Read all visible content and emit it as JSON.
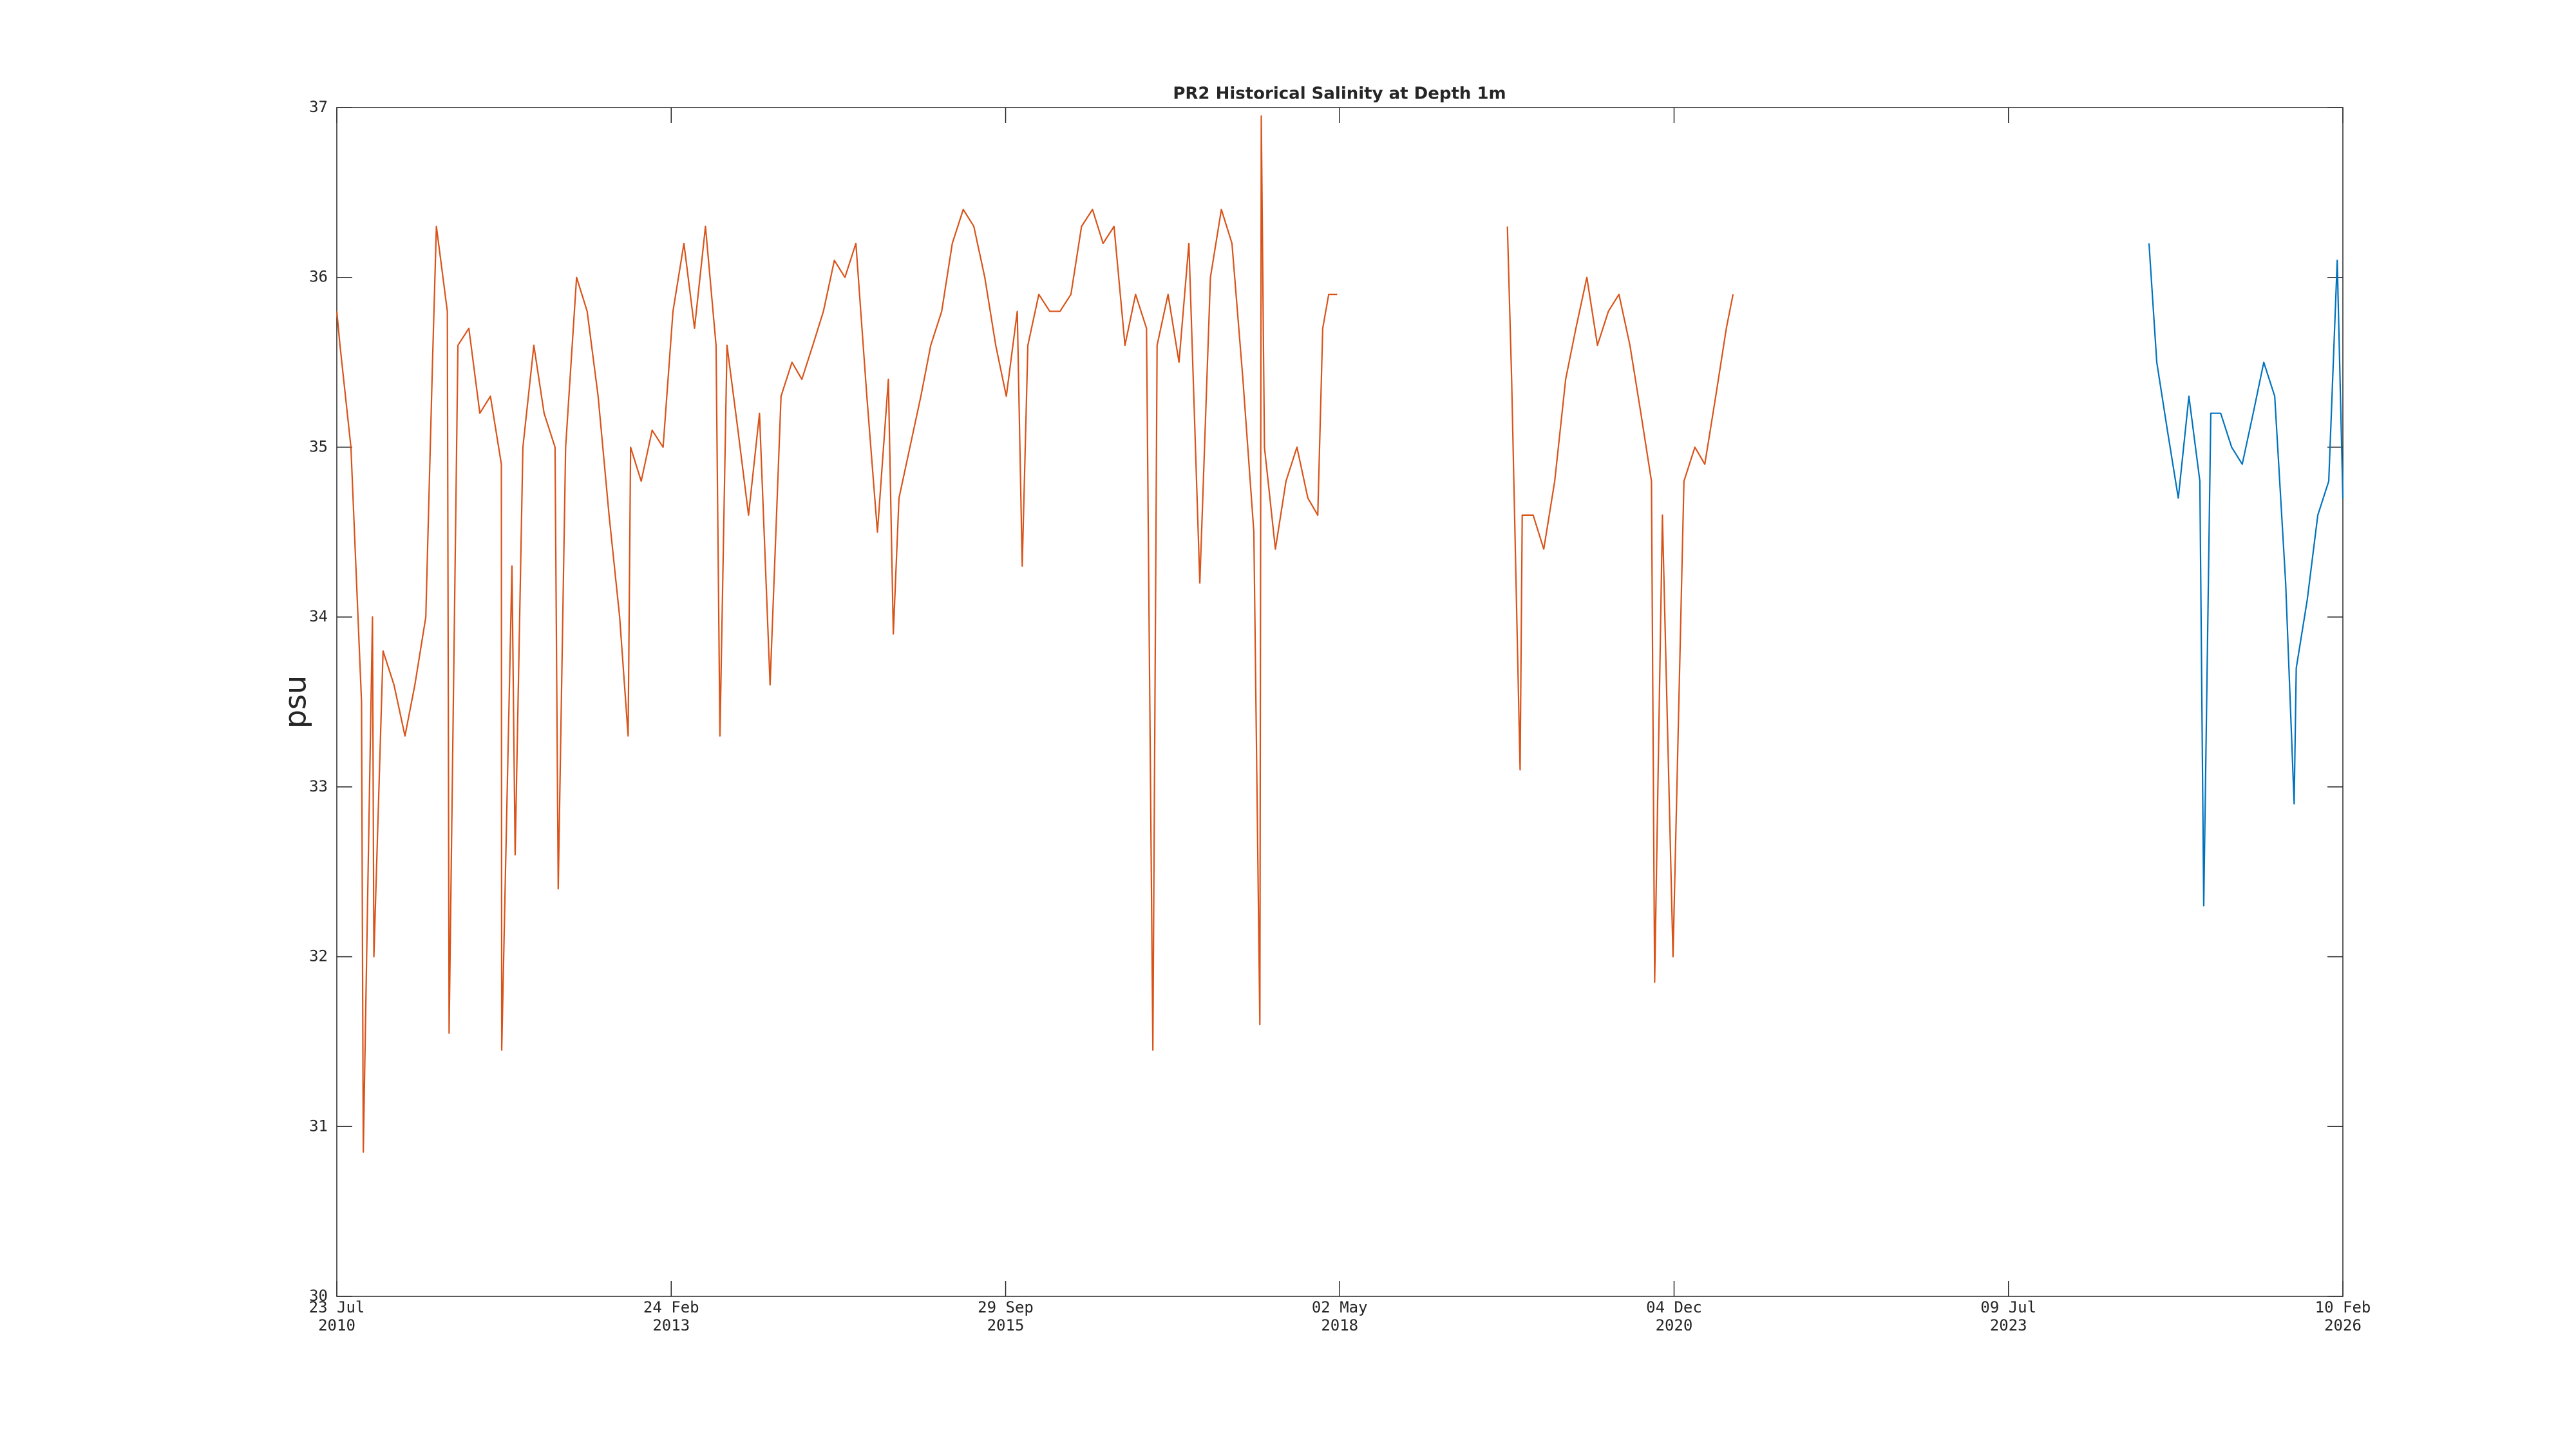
{
  "chart_data": {
    "type": "line",
    "title": "PR2 Historical Salinity at Depth 1m",
    "y_label": "psu",
    "xlim": [
      "2010-07-23",
      "2026-02-10"
    ],
    "xticks": [
      {
        "value": "2010-07-23",
        "label": [
          "23 Jul",
          "2010"
        ]
      },
      {
        "value": "2013-02-24",
        "label": [
          "24 Feb",
          "2013"
        ]
      },
      {
        "value": "2015-09-29",
        "label": [
          "29 Sep",
          "2015"
        ]
      },
      {
        "value": "2018-05-02",
        "label": [
          "02 May",
          "2018"
        ]
      },
      {
        "value": "2020-12-04",
        "label": [
          "04 Dec",
          "2020"
        ]
      },
      {
        "value": "2023-07-09",
        "label": [
          "09 Jul",
          "2023"
        ]
      },
      {
        "value": "2026-02-10",
        "label": [
          "10 Feb",
          "2026"
        ]
      }
    ],
    "ylim": [
      30,
      37
    ],
    "yticks": [
      30,
      31,
      32,
      33,
      34,
      35,
      36,
      37
    ],
    "grid": false,
    "series": [
      {
        "color": "#d95319",
        "x": [
          "2010-07-23",
          "2010-08-01",
          "2010-09-01",
          "2010-10-01",
          "2010-10-06",
          "2010-11-01",
          "2010-11-05",
          "2010-12-01",
          "2011-01-01",
          "2011-02-01",
          "2011-03-01",
          "2011-04-01",
          "2011-04-20",
          "2011-05-01",
          "2011-06-01",
          "2011-06-06",
          "2011-07-01",
          "2011-08-01",
          "2011-09-01",
          "2011-10-01",
          "2011-11-01",
          "2011-11-02",
          "2011-12-01",
          "2011-12-10",
          "2012-01-01",
          "2012-02-01",
          "2012-03-01",
          "2012-04-01",
          "2012-04-10",
          "2012-05-01",
          "2012-06-01",
          "2012-07-01",
          "2012-08-01",
          "2012-09-01",
          "2012-10-01",
          "2012-10-25",
          "2012-11-01",
          "2012-12-01",
          "2013-01-01",
          "2013-02-01",
          "2013-03-01",
          "2013-04-01",
          "2013-05-01",
          "2013-06-01",
          "2013-07-01",
          "2013-07-12",
          "2013-08-01",
          "2013-09-01",
          "2013-10-01",
          "2013-11-01",
          "2013-12-01",
          "2014-01-01",
          "2014-02-01",
          "2014-03-01",
          "2014-04-01",
          "2014-05-01",
          "2014-06-01",
          "2014-07-01",
          "2014-08-01",
          "2014-09-01",
          "2014-10-01",
          "2014-11-01",
          "2014-11-15",
          "2014-12-01",
          "2015-01-01",
          "2015-02-01",
          "2015-03-01",
          "2015-04-01",
          "2015-05-01",
          "2015-06-01",
          "2015-07-01",
          "2015-08-01",
          "2015-09-01",
          "2015-10-01",
          "2015-11-01",
          "2015-11-15",
          "2015-12-01",
          "2016-01-01",
          "2016-02-01",
          "2016-03-01",
          "2016-04-01",
          "2016-05-01",
          "2016-06-01",
          "2016-07-01",
          "2016-08-01",
          "2016-09-01",
          "2016-10-01",
          "2016-11-01",
          "2016-11-19",
          "2016-12-01",
          "2017-01-01",
          "2017-02-01",
          "2017-03-01",
          "2017-04-01",
          "2017-05-01",
          "2017-06-01",
          "2017-07-01",
          "2017-08-01",
          "2017-09-01",
          "2017-09-18",
          "2017-09-22",
          "2017-10-01",
          "2017-11-01",
          "2017-12-01",
          "2018-01-01",
          "2018-02-01",
          "2018-03-01",
          "2018-03-15",
          "2018-04-01",
          "2018-04-25",
          "2019-01-01",
          "2019-08-20",
          "2019-09-01",
          "2019-09-25",
          "2019-10-01",
          "2019-11-01",
          "2019-12-01",
          "2020-01-01",
          "2020-02-01",
          "2020-03-01",
          "2020-04-01",
          "2020-05-01",
          "2020-06-01",
          "2020-07-01",
          "2020-08-01",
          "2020-09-01",
          "2020-10-01",
          "2020-10-10",
          "2020-11-01",
          "2020-12-01",
          "2021-01-01",
          "2021-02-01",
          "2021-03-01",
          "2021-04-01",
          "2021-05-01",
          "2021-05-20"
        ],
        "values": [
          35.8,
          35.6,
          35.0,
          33.5,
          30.85,
          34.0,
          32.0,
          33.8,
          33.6,
          33.3,
          33.6,
          34.0,
          35.5,
          36.3,
          35.8,
          31.55,
          35.6,
          35.7,
          35.2,
          35.3,
          34.9,
          31.45,
          34.3,
          32.6,
          35.0,
          35.6,
          35.2,
          35.0,
          32.4,
          35.0,
          36.0,
          35.8,
          35.3,
          34.6,
          34.0,
          33.3,
          35.0,
          34.8,
          35.1,
          35.0,
          35.8,
          36.2,
          35.7,
          36.3,
          35.6,
          33.3,
          35.6,
          35.1,
          34.6,
          35.2,
          33.6,
          35.3,
          35.5,
          35.4,
          35.6,
          35.8,
          36.1,
          36.0,
          36.2,
          35.3,
          34.5,
          35.4,
          33.9,
          34.7,
          35.0,
          35.3,
          35.6,
          35.8,
          36.2,
          36.4,
          36.3,
          36.0,
          35.6,
          35.3,
          35.8,
          34.3,
          35.6,
          35.9,
          35.8,
          35.8,
          35.9,
          36.3,
          36.4,
          36.2,
          36.3,
          35.6,
          35.9,
          35.7,
          31.45,
          35.6,
          35.9,
          35.5,
          36.2,
          34.2,
          36.0,
          36.4,
          36.2,
          35.4,
          34.5,
          31.6,
          36.95,
          35.0,
          34.4,
          34.8,
          35.0,
          34.7,
          34.6,
          35.7,
          35.9,
          35.9,
          null,
          36.3,
          35.4,
          33.1,
          34.6,
          34.6,
          34.4,
          34.8,
          35.4,
          35.7,
          36.0,
          35.6,
          35.8,
          35.9,
          35.6,
          35.2,
          34.8,
          31.85,
          34.6,
          32.0,
          34.8,
          35.0,
          34.9,
          35.3,
          35.7,
          35.9
        ]
      },
      {
        "color": "#0072bd",
        "x": [
          "2024-08-10",
          "2024-09-01",
          "2024-10-01",
          "2024-11-01",
          "2024-12-01",
          "2025-01-01",
          "2025-01-12",
          "2025-02-01",
          "2025-03-01",
          "2025-04-01",
          "2025-05-01",
          "2025-06-01",
          "2025-07-01",
          "2025-08-01",
          "2025-09-01",
          "2025-09-25",
          "2025-10-01",
          "2025-11-01",
          "2025-12-01",
          "2026-01-01",
          "2026-01-25",
          "2026-02-10"
        ],
        "values": [
          36.2,
          35.5,
          35.1,
          34.7,
          35.3,
          34.8,
          32.3,
          35.2,
          35.2,
          35.0,
          34.9,
          35.2,
          35.5,
          35.3,
          34.2,
          32.9,
          33.7,
          34.1,
          34.6,
          34.8,
          36.1,
          34.7
        ]
      }
    ]
  }
}
